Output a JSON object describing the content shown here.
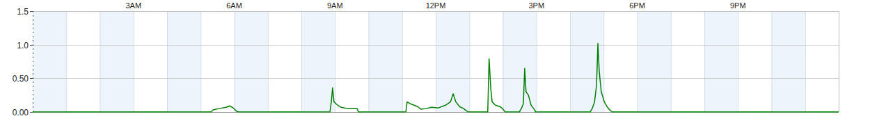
{
  "chart_data": {
    "type": "line",
    "color": "#008000",
    "grid": true,
    "xlim": [
      0,
      24
    ],
    "xticks": [
      {
        "value": 3,
        "label": "3AM"
      },
      {
        "value": 6,
        "label": "6AM"
      },
      {
        "value": 9,
        "label": "9AM"
      },
      {
        "value": 12,
        "label": "12PM"
      },
      {
        "value": 15,
        "label": "3PM"
      },
      {
        "value": 18,
        "label": "6PM"
      },
      {
        "value": 21,
        "label": "9PM"
      }
    ],
    "ylim": [
      0,
      1.5
    ],
    "yticks": [
      {
        "value": 0,
        "label": "0.00"
      },
      {
        "value": 0.5,
        "label": "0.50"
      },
      {
        "value": 1,
        "label": "1.0"
      },
      {
        "value": 1.5,
        "label": "1.5"
      }
    ],
    "x": [
      0,
      5.31,
      5.37,
      5.55,
      5.76,
      5.87,
      5.97,
      6.07,
      6.13,
      8.85,
      8.89,
      8.93,
      8.97,
      9.08,
      9.18,
      9.39,
      9.66,
      9.7,
      11.11,
      11.15,
      11.25,
      11.46,
      11.56,
      11.71,
      11.88,
      12.08,
      12.29,
      12.44,
      12.52,
      12.6,
      12.71,
      12.83,
      12.91,
      12.97,
      13.55,
      13.59,
      13.64,
      13.68,
      13.78,
      13.91,
      13.99,
      14.07,
      14.49,
      14.55,
      14.61,
      14.65,
      14.69,
      14.76,
      14.84,
      14.92,
      14.98,
      16.6,
      16.66,
      16.73,
      16.79,
      16.83,
      16.87,
      16.93,
      17.02,
      17.1,
      17.18,
      17.26,
      24
    ],
    "values": [
      0,
      0,
      0.03,
      0.05,
      0.07,
      0.09,
      0.06,
      0.01,
      0,
      0,
      0.14,
      0.36,
      0.15,
      0.1,
      0.07,
      0.05,
      0.05,
      0,
      0,
      0.15,
      0.12,
      0.08,
      0.04,
      0.05,
      0.07,
      0.06,
      0.1,
      0.15,
      0.27,
      0.15,
      0.08,
      0.05,
      0.02,
      0,
      0,
      0.79,
      0.35,
      0.15,
      0.1,
      0.08,
      0.05,
      0,
      0,
      0.05,
      0.12,
      0.65,
      0.3,
      0.25,
      0.1,
      0.05,
      0,
      0,
      0.05,
      0.15,
      0.4,
      1.02,
      0.6,
      0.3,
      0.15,
      0.08,
      0.03,
      0,
      0
    ]
  }
}
